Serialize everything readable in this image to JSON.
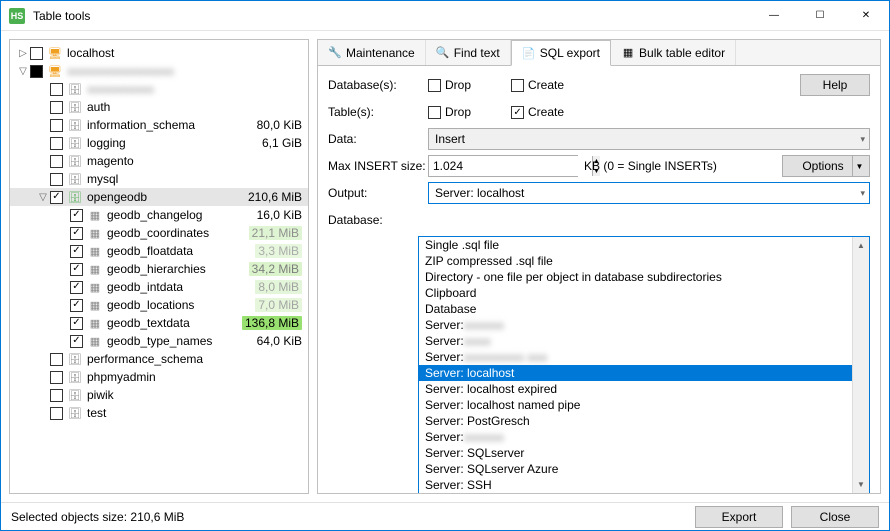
{
  "window": {
    "title": "Table tools",
    "icon_label": "HS"
  },
  "win_controls": {
    "min": "—",
    "max": "☐",
    "close": "✕"
  },
  "tree": {
    "nodes": [
      {
        "depth": 0,
        "expander": "▷",
        "check": "empty",
        "icon": "🖥",
        "icon_color": "#f0a020",
        "label": "localhost",
        "blur": false,
        "size": ""
      },
      {
        "depth": 0,
        "expander": "▽",
        "check": "partial",
        "icon": "🖥",
        "icon_color": "#f0a020",
        "label": "aaaaaaaaaaaaaaaa",
        "blur": true,
        "size": ""
      },
      {
        "depth": 1,
        "expander": "",
        "check": "empty",
        "icon": "🗄",
        "icon_color": "#888",
        "label": "aaaaaaaaaa",
        "blur": true,
        "size": ""
      },
      {
        "depth": 1,
        "expander": "",
        "check": "empty",
        "icon": "🗄",
        "icon_color": "#888",
        "label": "auth",
        "blur": false,
        "size": ""
      },
      {
        "depth": 1,
        "expander": "",
        "check": "empty",
        "icon": "🗄",
        "icon_color": "#888",
        "label": "information_schema",
        "blur": false,
        "size": "80,0 KiB"
      },
      {
        "depth": 1,
        "expander": "",
        "check": "empty",
        "icon": "🗄",
        "icon_color": "#888",
        "label": "logging",
        "blur": false,
        "size": "6,1 GiB"
      },
      {
        "depth": 1,
        "expander": "",
        "check": "empty",
        "icon": "🗄",
        "icon_color": "#888",
        "label": "magento",
        "blur": false,
        "size": ""
      },
      {
        "depth": 1,
        "expander": "",
        "check": "empty",
        "icon": "🗄",
        "icon_color": "#888",
        "label": "mysql",
        "blur": false,
        "size": ""
      },
      {
        "depth": 1,
        "expander": "▽",
        "check": "checked",
        "icon": "🗄",
        "icon_color": "#5aaf5a",
        "label": "opengeodb",
        "blur": false,
        "size": "210,6 MiB",
        "selected": true
      },
      {
        "depth": 2,
        "expander": "",
        "check": "checked",
        "icon": "▦",
        "icon_color": "#888",
        "label": "geodb_changelog",
        "blur": false,
        "size": "16,0 KiB",
        "bar": 0
      },
      {
        "depth": 2,
        "expander": "",
        "check": "checked",
        "icon": "▦",
        "icon_color": "#888",
        "label": "geodb_coordinates",
        "blur": false,
        "size": "21,1 MiB",
        "bar": 0.2
      },
      {
        "depth": 2,
        "expander": "",
        "check": "checked",
        "icon": "▦",
        "icon_color": "#888",
        "label": "geodb_floatdata",
        "blur": false,
        "size": "3,3 MiB",
        "bar": 0.05
      },
      {
        "depth": 2,
        "expander": "",
        "check": "checked",
        "icon": "▦",
        "icon_color": "#888",
        "label": "geodb_hierarchies",
        "blur": false,
        "size": "34,2 MiB",
        "bar": 0.3
      },
      {
        "depth": 2,
        "expander": "",
        "check": "checked",
        "icon": "▦",
        "icon_color": "#888",
        "label": "geodb_intdata",
        "blur": false,
        "size": "8,0 MiB",
        "bar": 0.1
      },
      {
        "depth": 2,
        "expander": "",
        "check": "checked",
        "icon": "▦",
        "icon_color": "#888",
        "label": "geodb_locations",
        "blur": false,
        "size": "7,0 MiB",
        "bar": 0.08
      },
      {
        "depth": 2,
        "expander": "",
        "check": "checked",
        "icon": "▦",
        "icon_color": "#888",
        "label": "geodb_textdata",
        "blur": false,
        "size": "136,8 MiB",
        "bar": 1.0
      },
      {
        "depth": 2,
        "expander": "",
        "check": "checked",
        "icon": "▦",
        "icon_color": "#888",
        "label": "geodb_type_names",
        "blur": false,
        "size": "64,0 KiB",
        "bar": 0
      },
      {
        "depth": 1,
        "expander": "",
        "check": "empty",
        "icon": "🗄",
        "icon_color": "#888",
        "label": "performance_schema",
        "blur": false,
        "size": ""
      },
      {
        "depth": 1,
        "expander": "",
        "check": "empty",
        "icon": "🗄",
        "icon_color": "#888",
        "label": "phpmyadmin",
        "blur": false,
        "size": ""
      },
      {
        "depth": 1,
        "expander": "",
        "check": "empty",
        "icon": "🗄",
        "icon_color": "#888",
        "label": "piwik",
        "blur": false,
        "size": ""
      },
      {
        "depth": 1,
        "expander": "",
        "check": "empty",
        "icon": "🗄",
        "icon_color": "#888",
        "label": "test",
        "blur": false,
        "size": ""
      }
    ]
  },
  "tabs": [
    {
      "icon": "🔧",
      "label": "Maintenance",
      "active": false
    },
    {
      "icon": "🔍",
      "label": "Find text",
      "active": false
    },
    {
      "icon": "📄",
      "label": "SQL export",
      "active": true
    },
    {
      "icon": "▦",
      "label": "Bulk table editor",
      "active": false
    }
  ],
  "form": {
    "databases_label": "Database(s):",
    "tables_label": "Table(s):",
    "data_label": "Data:",
    "max_insert_label": "Max INSERT size:",
    "output_label": "Output:",
    "database_label": "Database:",
    "drop_label": "Drop",
    "create_label": "Create",
    "db_drop": false,
    "db_create": false,
    "tb_drop": false,
    "tb_create": true,
    "data_value": "Insert",
    "insert_size": "1.024",
    "insert_unit": "KB (0 = Single INSERTs)",
    "output_value": "Server: localhost",
    "help_btn": "Help",
    "options_btn": "Options"
  },
  "dropdown": {
    "options": [
      {
        "text": "Single .sql file"
      },
      {
        "text": "ZIP compressed .sql file"
      },
      {
        "text": "Directory - one file per object in database subdirectories"
      },
      {
        "text": "Clipboard"
      },
      {
        "text": "Database"
      },
      {
        "text": "Server: ",
        "blur_after": "aaaaaa"
      },
      {
        "text": "Server: ",
        "blur_after": "aaaa"
      },
      {
        "text": "Server: ",
        "blur_after": "aaaaaaaaa aaa"
      },
      {
        "text": "Server: localhost",
        "selected": true
      },
      {
        "text": "Server: localhost expired"
      },
      {
        "text": "Server: localhost named pipe"
      },
      {
        "text": "Server: PostGresch"
      },
      {
        "text": "Server: ",
        "blur_after": "aaaaaa"
      },
      {
        "text": "Server: SQLserver"
      },
      {
        "text": "Server: SQLserver Azure"
      },
      {
        "text": "Server: SSH"
      }
    ]
  },
  "status": {
    "text": "Selected objects size: 210,6 MiB",
    "export_btn": "Export",
    "close_btn": "Close"
  },
  "colors": {
    "bar_green": "#b7e89a",
    "bar_green_strong": "#98e070",
    "selection_blue": "#0078d7"
  }
}
